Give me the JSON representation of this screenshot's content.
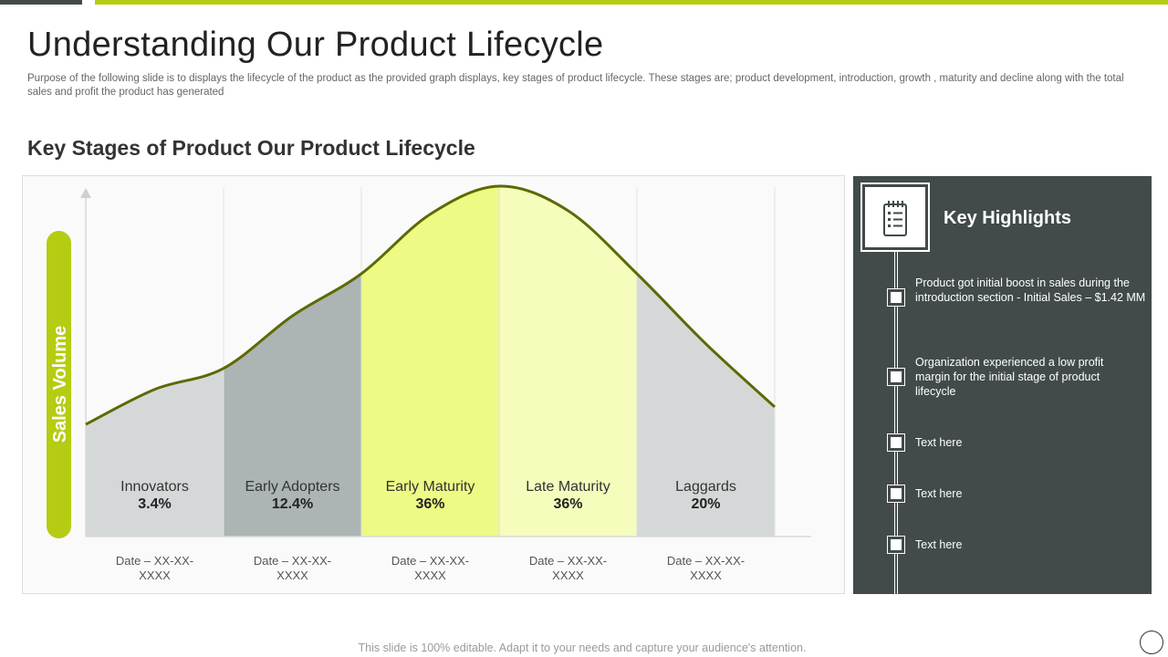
{
  "page": {
    "title": "Understanding Our Product Lifecycle",
    "subtitle": "Purpose of the following slide is to displays the lifecycle of the product as the provided graph displays, key stages of product lifecycle. These stages are; product development, introduction, growth , maturity and decline along with the total sales and profit the product has generated",
    "footer": "This slide is 100% editable. Adapt it to your needs and capture your audience's attention."
  },
  "chart_data": {
    "type": "area",
    "title": "Key Stages of Product Our Product Lifecycle",
    "ylabel": "Sales Volume",
    "xlabel": "",
    "categories": [
      "Innovators",
      "Early Adopters",
      "Early Maturity",
      "Late Maturity",
      "Laggards"
    ],
    "values": [
      3.4,
      12.4,
      36,
      36,
      20
    ],
    "value_labels": [
      "3.4%",
      "12.4%",
      "36%",
      "36%",
      "20%"
    ],
    "dates": [
      "Date – XX-XX-XXXX",
      "Date – XX-XX-XXXX",
      "Date – XX-XX-XXXX",
      "Date – XX-XX-XXXX",
      "Date – XX-XX-XXXX"
    ],
    "fill_colors": [
      "#d5d8d8",
      "#acb4b4",
      "#edfa84",
      "#f5fcbc",
      "#d5d8d8"
    ],
    "curve_color": "#5c6a00",
    "accent_color": "#b5cc12",
    "curve": [
      {
        "x": 0,
        "y": 32
      },
      {
        "x": 0.5,
        "y": 42
      },
      {
        "x": 1,
        "y": 48
      },
      {
        "x": 1.5,
        "y": 63
      },
      {
        "x": 2,
        "y": 75
      },
      {
        "x": 2.5,
        "y": 92
      },
      {
        "x": 3,
        "y": 100
      },
      {
        "x": 3.5,
        "y": 93
      },
      {
        "x": 4,
        "y": 75
      },
      {
        "x": 4.5,
        "y": 55
      },
      {
        "x": 5,
        "y": 37
      }
    ]
  },
  "highlights": {
    "title": "Key Highlights",
    "icon": "checklist-icon",
    "items": [
      "Product got initial boost in sales during the introduction section  - Initial Sales – $1.42 MM",
      "Organization experienced  a low profit margin for the initial stage of product lifecycle",
      "Text here",
      "Text here",
      "Text here"
    ]
  },
  "colors": {
    "accent": "#b5cc12",
    "dark_panel": "#424a4a",
    "top_bar_dark": "#444a4a"
  }
}
